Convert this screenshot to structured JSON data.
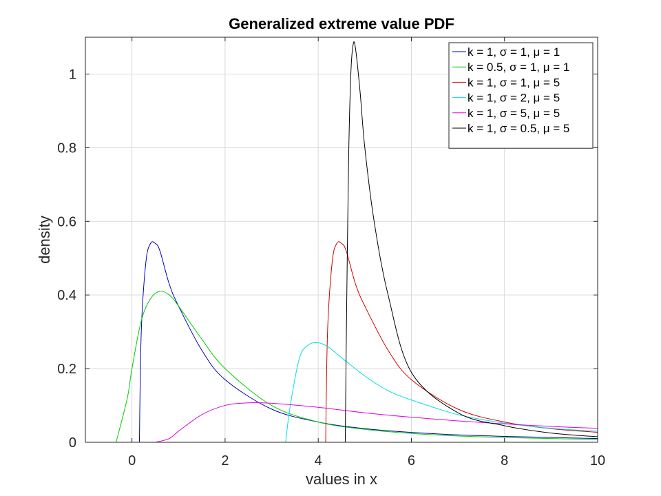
{
  "chart_data": {
    "type": "line",
    "title": "Generalized extreme value PDF",
    "xlabel": "values in x",
    "ylabel": "density",
    "xlim": [
      -1,
      10
    ],
    "ylim": [
      0,
      1.1
    ],
    "xticks": [
      0,
      2,
      4,
      6,
      8,
      10
    ],
    "xtick_labels": [
      "0",
      "2",
      "4",
      "6",
      "8",
      "10"
    ],
    "yticks": [
      0,
      0.2,
      0.4,
      0.6,
      0.8,
      1
    ],
    "ytick_labels": [
      "0",
      "0.2",
      "0.4",
      "0.6",
      "0.8",
      "1"
    ],
    "grid": true,
    "legend_position": "top-right",
    "series": [
      {
        "name": "k = 1, σ = 1, μ = 1",
        "color": "#0000b3",
        "x": [
          0.16,
          0.2,
          0.3,
          0.4,
          0.5,
          0.6,
          0.8,
          1.0,
          1.5,
          2.0,
          3.0,
          4.0,
          5.0,
          6.0,
          7.0,
          8.0,
          9.0,
          10.0
        ],
        "y": [
          0.0,
          0.3,
          0.49,
          0.54,
          0.54,
          0.52,
          0.43,
          0.37,
          0.25,
          0.17,
          0.09,
          0.055,
          0.037,
          0.027,
          0.02,
          0.016,
          0.013,
          0.01
        ]
      },
      {
        "name": "k = 0.5, σ = 1, μ = 1",
        "color": "#00cc00",
        "x": [
          -0.34,
          -0.1,
          0.0,
          0.2,
          0.4,
          0.6,
          0.8,
          1.0,
          1.5,
          2.0,
          3.0,
          4.0,
          5.0,
          6.0,
          7.0,
          8.0,
          9.0,
          10.0
        ],
        "y": [
          0.0,
          0.12,
          0.2,
          0.33,
          0.39,
          0.41,
          0.4,
          0.37,
          0.28,
          0.2,
          0.1,
          0.055,
          0.035,
          0.024,
          0.017,
          0.013,
          0.01,
          0.008
        ]
      },
      {
        "name": "k = 1, σ = 1, μ = 5",
        "color": "#cc0000",
        "x": [
          4.16,
          4.2,
          4.3,
          4.4,
          4.5,
          4.6,
          4.8,
          5.0,
          5.5,
          6.0,
          7.0,
          8.0,
          9.0,
          10.0
        ],
        "y": [
          0.0,
          0.3,
          0.49,
          0.54,
          0.54,
          0.52,
          0.43,
          0.37,
          0.25,
          0.17,
          0.09,
          0.055,
          0.037,
          0.027
        ]
      },
      {
        "name": "k = 1, σ = 2, μ = 5",
        "color": "#00e0e0",
        "x": [
          3.3,
          3.4,
          3.6,
          3.8,
          4.0,
          4.2,
          4.5,
          5.0,
          5.5,
          6.0,
          7.0,
          8.0,
          9.0,
          10.0
        ],
        "y": [
          0.0,
          0.1,
          0.23,
          0.265,
          0.27,
          0.26,
          0.23,
          0.18,
          0.14,
          0.115,
          0.075,
          0.052,
          0.038,
          0.03
        ]
      },
      {
        "name": "k = 1, σ = 5, μ = 5",
        "color": "#e000e0",
        "x": [
          0.5,
          0.8,
          1.0,
          1.5,
          2.0,
          2.5,
          3.0,
          4.0,
          5.0,
          6.0,
          7.0,
          8.0,
          9.0,
          10.0
        ],
        "y": [
          0.0,
          0.01,
          0.03,
          0.075,
          0.1,
          0.107,
          0.106,
          0.095,
          0.08,
          0.068,
          0.058,
          0.05,
          0.043,
          0.038
        ]
      },
      {
        "name": "k = 1, σ = 0.5, μ = 5",
        "color": "#000000",
        "x": [
          4.58,
          4.6,
          4.65,
          4.7,
          4.75,
          4.8,
          4.9,
          5.0,
          5.2,
          5.5,
          6.0,
          7.0,
          8.0,
          9.0,
          10.0
        ],
        "y": [
          0.0,
          0.25,
          0.75,
          1.0,
          1.08,
          1.07,
          0.95,
          0.8,
          0.6,
          0.4,
          0.19,
          0.08,
          0.045,
          0.025,
          0.015
        ]
      }
    ]
  }
}
